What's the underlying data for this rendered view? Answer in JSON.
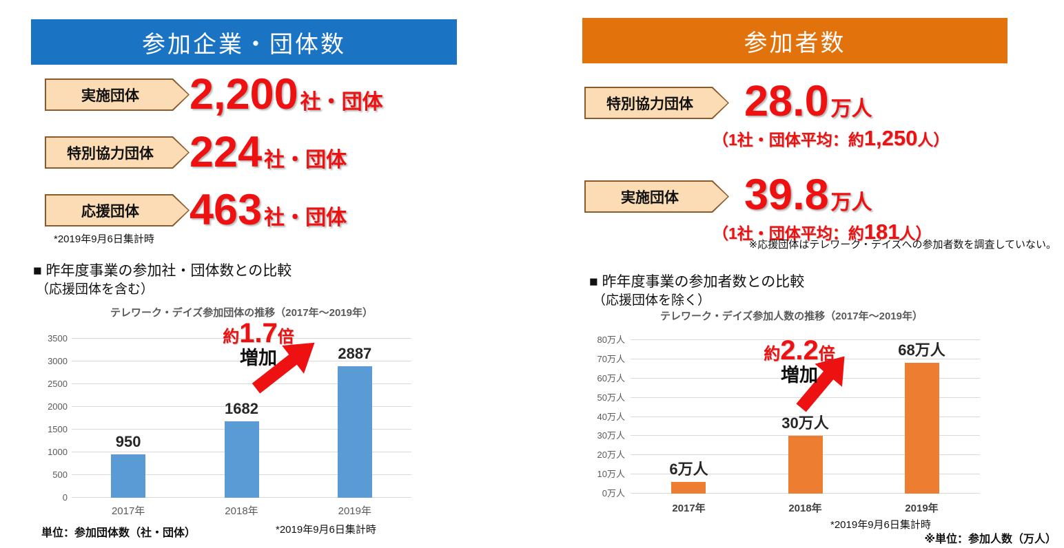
{
  "colors": {
    "left_header_bg": "#1B73C4",
    "right_header_bg": "#E2730C",
    "badge_fill": "#FBDCB5",
    "badge_border": "#8A5A2B",
    "accent_red": "#EE1111",
    "bar_blue": "#5B9BD5",
    "bar_orange": "#ED7D31"
  },
  "left_panel": {
    "header": "参加企業・団体数",
    "stats": [
      {
        "label": "実施団体",
        "value": "2,200",
        "unit": "社・団体"
      },
      {
        "label": "特別協力団体",
        "value": "224",
        "unit": "社・団体"
      },
      {
        "label": "応援団体",
        "value": "463",
        "unit": "社・団体"
      }
    ],
    "note": "*2019年9月6日集計時",
    "section_heading": "■ 昨年度事業の参加社・団体数との比較",
    "section_subheading": "（応援団体を含む）",
    "footer_unit": "単位：参加団体数（社・団体）",
    "footer_note": "*2019年9月6日集計時"
  },
  "right_panel": {
    "header": "参加者数",
    "stats": [
      {
        "label": "特別協力団体",
        "value": "28.0",
        "unit": "万人",
        "sub_prefix": "（1社・団体平均：約",
        "sub_value": "1,250",
        "sub_suffix": "人）"
      },
      {
        "label": "実施団体",
        "value": "39.8",
        "unit": "万人",
        "sub_prefix": "（1社・団体平均：約",
        "sub_value": "181",
        "sub_suffix": "人）"
      }
    ],
    "note": "※応援団体はテレワーク・デイズへの参加者数を調査していない。",
    "section_heading": "■ 昨年度事業の参加者数との比較",
    "section_subheading": "（応援団体を除く）",
    "footer_note": "*2019年9月6日集計時",
    "footer_unit": "※単位：参加人数（万人）"
  },
  "chart_data": [
    {
      "type": "bar",
      "title": "テレワーク・デイズ参加団体の推移（2017年～2019年）",
      "categories": [
        "2017年",
        "2018年",
        "2019年"
      ],
      "values": [
        950,
        1682,
        2887
      ],
      "value_labels": [
        "950",
        "1682",
        "2887"
      ],
      "ylim": [
        0,
        3500
      ],
      "ytick_labels": [
        "0",
        "500",
        "1000",
        "1500",
        "2000",
        "2500",
        "3000",
        "3500"
      ],
      "bar_color": "#5B9BD5",
      "grid": true,
      "legend": "none",
      "annotation": {
        "prefix": "約",
        "factor": "1.7",
        "suffix": "倍",
        "sub": "増加"
      }
    },
    {
      "type": "bar",
      "title": "テレワーク・デイズ参加人数の推移（2017年～2019年）",
      "categories": [
        "2017年",
        "2018年",
        "2019年"
      ],
      "values": [
        6,
        30,
        68
      ],
      "value_labels": [
        "6万人",
        "30万人",
        "68万人"
      ],
      "ylim": [
        0,
        80
      ],
      "ytick_labels": [
        "0万人",
        "10万人",
        "20万人",
        "30万人",
        "40万人",
        "50万人",
        "60万人",
        "70万人",
        "80万人"
      ],
      "bar_color": "#ED7D31",
      "grid": true,
      "legend": "none",
      "annotation": {
        "prefix": "約",
        "factor": "2.2",
        "suffix": "倍",
        "sub": "増加"
      }
    }
  ]
}
